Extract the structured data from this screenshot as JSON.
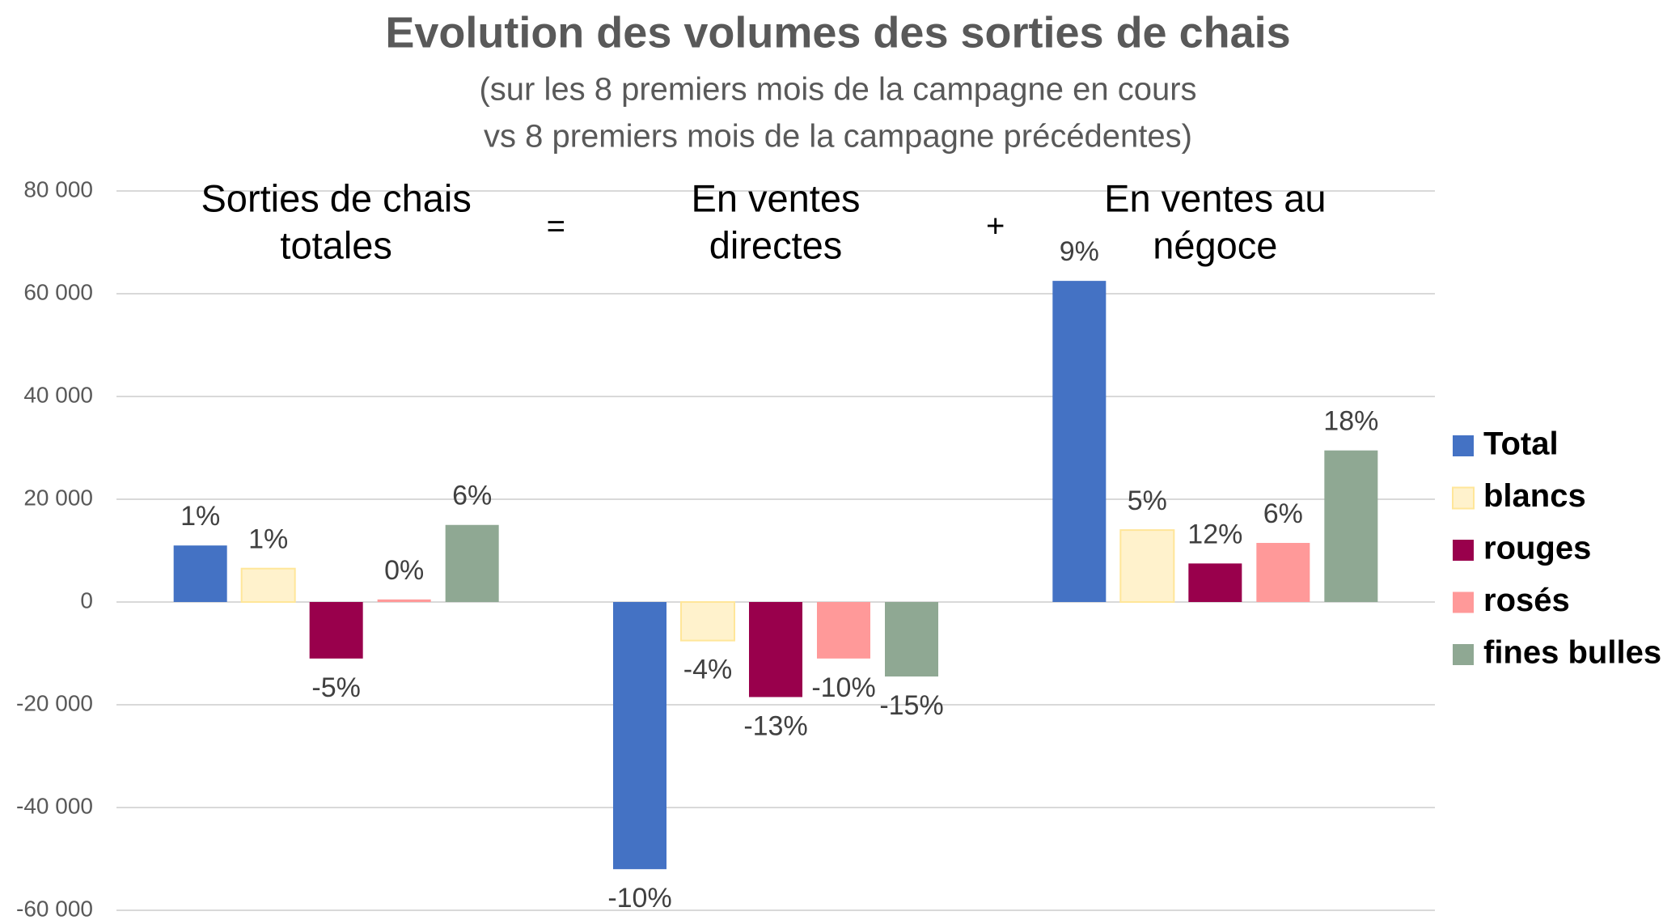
{
  "chart_data": {
    "type": "bar",
    "title": "Evolution des volumes des sorties de chais",
    "subtitle": [
      "(sur les 8 premiers mois de la campagne en cours",
      "vs 8 premiers mois de la campagne précédentes)"
    ],
    "categories": [
      [
        "Sorties de chais",
        "totales"
      ],
      [
        "En ventes",
        "directes"
      ],
      [
        "En ventes au",
        "négoce"
      ]
    ],
    "operators": [
      "=",
      "+"
    ],
    "series": [
      {
        "name": "Total",
        "color": "#4472c4",
        "values": [
          11000,
          -52000,
          62500
        ],
        "labels": [
          "1%",
          "-10%",
          "9%"
        ]
      },
      {
        "name": "blancs",
        "color": "#fff2cc",
        "values": [
          6500,
          -7500,
          14000
        ],
        "labels": [
          "1%",
          "-4%",
          "5%"
        ]
      },
      {
        "name": "rouges",
        "color": "#99004c",
        "values": [
          -11000,
          -18500,
          7500
        ],
        "labels": [
          "-5%",
          "-13%",
          "12%"
        ]
      },
      {
        "name": "rosés",
        "color": "#ff9999",
        "values": [
          500,
          -11000,
          11500
        ],
        "labels": [
          "0%",
          "-10%",
          "6%"
        ]
      },
      {
        "name": "fines bulles",
        "color": "#8fa893",
        "values": [
          15000,
          -14500,
          29500
        ],
        "labels": [
          "6%",
          "-15%",
          "18%"
        ]
      }
    ],
    "ylim": [
      -60000,
      80000
    ],
    "yticks": [
      {
        "value": -60000,
        "label": "-60 000"
      },
      {
        "value": -40000,
        "label": "-40 000"
      },
      {
        "value": -20000,
        "label": "-20 000"
      },
      0,
      {
        "value": 20000,
        "label": "20 000"
      },
      {
        "value": 40000,
        "label": "40 000"
      },
      {
        "value": 60000,
        "label": "60 000"
      },
      {
        "value": 80000,
        "label": "80 000"
      }
    ],
    "grid": true,
    "legend": "right"
  }
}
